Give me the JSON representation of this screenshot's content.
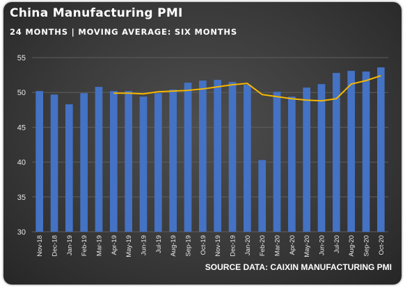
{
  "chart_data": {
    "type": "bar",
    "title": "China Manufacturing PMI",
    "subtitle": "24 MONTHS | MOVING AVERAGE: SIX MONTHS",
    "source": "SOURCE DATA: CAIXIN MANUFACTURING PMI",
    "categories": [
      "Nov-18",
      "Dec-18",
      "Jan-19",
      "Feb-19",
      "Mar-19",
      "Apr-19",
      "May-19",
      "Jun-19",
      "Jul-19",
      "Aug-19",
      "Sep-19",
      "Oct-19",
      "Nov-19",
      "Dec-19",
      "Jan-20",
      "Feb-20",
      "Mar-20",
      "Apr-20",
      "May-20",
      "Jun-20",
      "Jul-20",
      "Aug-20",
      "Sep-20",
      "Oct-20"
    ],
    "series": [
      {
        "type": "bar",
        "values": [
          50.2,
          49.7,
          48.3,
          49.9,
          50.8,
          50.2,
          50.2,
          49.4,
          49.9,
          50.4,
          51.4,
          51.7,
          51.8,
          51.5,
          51.1,
          40.3,
          50.1,
          49.4,
          50.7,
          51.2,
          52.8,
          53.1,
          53.0,
          53.6
        ],
        "color": "#4472c4"
      },
      {
        "type": "line",
        "values": [
          null,
          null,
          null,
          null,
          null,
          49.9,
          49.9,
          49.8,
          50.1,
          50.2,
          50.3,
          50.5,
          50.8,
          51.1,
          51.3,
          49.7,
          49.4,
          49.1,
          48.9,
          48.8,
          49.1,
          51.2,
          51.7,
          52.4
        ],
        "color": "#f5b700"
      }
    ],
    "ylim": [
      30,
      55
    ],
    "yticks": [
      30,
      35,
      40,
      45,
      50,
      55
    ],
    "grid": true,
    "legend": "none"
  }
}
